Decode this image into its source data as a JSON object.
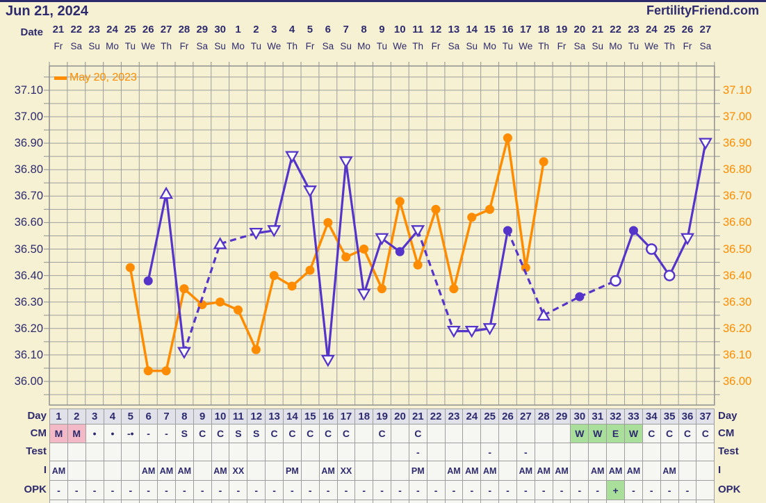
{
  "header": {
    "title": "Jun 21, 2024",
    "brand": "FertilityFriend.com"
  },
  "labels": {
    "date": "Date"
  },
  "calendar": {
    "dates": [
      "21",
      "22",
      "23",
      "24",
      "25",
      "26",
      "27",
      "28",
      "29",
      "30",
      "1",
      "2",
      "3",
      "4",
      "5",
      "6",
      "7",
      "8",
      "9",
      "10",
      "11",
      "12",
      "13",
      "14",
      "15",
      "16",
      "17",
      "18",
      "19",
      "20",
      "21",
      "22",
      "23",
      "24",
      "25",
      "26",
      "27"
    ],
    "weekdays": [
      "Fr",
      "Sa",
      "Su",
      "Mo",
      "Tu",
      "We",
      "Th",
      "Fr",
      "Sa",
      "Su",
      "Mo",
      "Tu",
      "We",
      "Th",
      "Fr",
      "Sa",
      "Su",
      "Mo",
      "Tu",
      "We",
      "Th",
      "Fr",
      "Sa",
      "Su",
      "Mo",
      "Tu",
      "We",
      "Th",
      "Fr",
      "Sa",
      "Su",
      "Mo",
      "Tu",
      "We",
      "Th",
      "Fr",
      "Sa"
    ]
  },
  "chart_data": {
    "type": "line",
    "title": "Basal body temperature chart with previous-cycle overlay",
    "x_axis": {
      "label": "Day",
      "days": 37
    },
    "y_axis": {
      "ticks": [
        "37.10",
        "37.00",
        "36.90",
        "36.80",
        "36.70",
        "36.60",
        "36.50",
        "36.40",
        "36.30",
        "36.20",
        "36.10",
        "36.00"
      ],
      "min": 35.91,
      "max": 37.19,
      "minor_step": 0.05
    },
    "legend": {
      "position": "top-left",
      "entries": [
        "May 20, 2023"
      ]
    },
    "grid": true,
    "gap_style": "dashed",
    "series": [
      {
        "name": "May 20, 2023",
        "color": "#ff8c00",
        "width": 3.5,
        "marker_default": "dot",
        "points": [
          {
            "day": 5,
            "temp": 36.43
          },
          {
            "day": 6,
            "temp": 36.04
          },
          {
            "day": 7,
            "temp": 36.04
          },
          {
            "day": 8,
            "temp": 36.35
          },
          {
            "day": 9,
            "temp": 36.29
          },
          {
            "day": 10,
            "temp": 36.3
          },
          {
            "day": 11,
            "temp": 36.27
          },
          {
            "day": 12,
            "temp": 36.12
          },
          {
            "day": 13,
            "temp": 36.4
          },
          {
            "day": 14,
            "temp": 36.36
          },
          {
            "day": 15,
            "temp": 36.42
          },
          {
            "day": 16,
            "temp": 36.6
          },
          {
            "day": 17,
            "temp": 36.47
          },
          {
            "day": 18,
            "temp": 36.5
          },
          {
            "day": 19,
            "temp": 36.35
          },
          {
            "day": 20,
            "temp": 36.68
          },
          {
            "day": 21,
            "temp": 36.44
          },
          {
            "day": 22,
            "temp": 36.65
          },
          {
            "day": 23,
            "temp": 36.35
          },
          {
            "day": 24,
            "temp": 36.62
          },
          {
            "day": 25,
            "temp": 36.65
          },
          {
            "day": 26,
            "temp": 36.92
          },
          {
            "day": 27,
            "temp": 36.43
          },
          {
            "day": 28,
            "temp": 36.83
          }
        ]
      },
      {
        "name": "Jun 21, 2024",
        "color": "#5534c9",
        "width": 3.2,
        "marker_default": "tri-down",
        "points": [
          {
            "day": 6,
            "temp": 36.38,
            "marker": "dot"
          },
          {
            "day": 7,
            "temp": 36.71,
            "marker": "tri-up"
          },
          {
            "day": 8,
            "temp": 36.11,
            "marker": "tri-down"
          },
          {
            "day": 10,
            "temp": 36.52,
            "marker": "tri-up"
          },
          {
            "day": 12,
            "temp": 36.56,
            "marker": "tri-down"
          },
          {
            "day": 13,
            "temp": 36.57,
            "marker": "tri-down"
          },
          {
            "day": 14,
            "temp": 36.85,
            "marker": "tri-down"
          },
          {
            "day": 15,
            "temp": 36.72,
            "marker": "tri-down"
          },
          {
            "day": 16,
            "temp": 36.08,
            "marker": "tri-down"
          },
          {
            "day": 17,
            "temp": 36.83,
            "marker": "tri-down"
          },
          {
            "day": 18,
            "temp": 36.33,
            "marker": "tri-down"
          },
          {
            "day": 19,
            "temp": 36.54,
            "marker": "tri-down"
          },
          {
            "day": 20,
            "temp": 36.49,
            "marker": "dot"
          },
          {
            "day": 21,
            "temp": 36.57,
            "marker": "tri-down"
          },
          {
            "day": 23,
            "temp": 36.19,
            "marker": "tri-down"
          },
          {
            "day": 24,
            "temp": 36.19,
            "marker": "tri-down"
          },
          {
            "day": 25,
            "temp": 36.2,
            "marker": "tri-down"
          },
          {
            "day": 26,
            "temp": 36.57,
            "marker": "dot"
          },
          {
            "day": 28,
            "temp": 36.25,
            "marker": "tri-up"
          },
          {
            "day": 30,
            "temp": 36.32,
            "marker": "dot"
          },
          {
            "day": 32,
            "temp": 36.38,
            "marker": "circle"
          },
          {
            "day": 33,
            "temp": 36.57,
            "marker": "dot"
          },
          {
            "day": 34,
            "temp": 36.5,
            "marker": "circle"
          },
          {
            "day": 35,
            "temp": 36.4,
            "marker": "circle"
          },
          {
            "day": 36,
            "temp": 36.54,
            "marker": "tri-down"
          },
          {
            "day": 37,
            "temp": 36.9,
            "marker": "tri-down"
          }
        ]
      }
    ]
  },
  "table": {
    "left_labels": [
      "Day",
      "CM",
      "Test",
      "I",
      "OPK"
    ],
    "right_labels": [
      "Day",
      "CM",
      "Test",
      "I",
      "OPK"
    ],
    "days": [
      "1",
      "2",
      "3",
      "4",
      "5",
      "6",
      "7",
      "8",
      "9",
      "10",
      "11",
      "12",
      "13",
      "14",
      "15",
      "16",
      "17",
      "18",
      "19",
      "20",
      "21",
      "22",
      "23",
      "24",
      "25",
      "26",
      "27",
      "28",
      "29",
      "30",
      "31",
      "32",
      "33",
      "34",
      "35",
      "36",
      "37"
    ],
    "cm": [
      "M",
      "M",
      "•",
      "•",
      "-•",
      "-",
      "-",
      "S",
      "C",
      "C",
      "S",
      "S",
      "C",
      "C",
      "C",
      "C",
      "C",
      "",
      "C",
      "",
      "C",
      "",
      "",
      "",
      "",
      "",
      "",
      "",
      "",
      "W",
      "W",
      "E",
      "W",
      "C",
      "C",
      "C",
      "C"
    ],
    "cm_bg": {
      "1": "#f3b9c6",
      "2": "#f3b9c6",
      "30": "#a9df9b",
      "31": "#a9df9b",
      "32": "#a9df9b",
      "33": "#a9df9b"
    },
    "test": [
      "",
      "",
      "",
      "",
      "",
      "",
      "",
      "",
      "",
      "",
      "",
      "",
      "",
      "",
      "",
      "",
      "",
      "",
      "",
      "",
      "-",
      "",
      "",
      "",
      "-",
      "",
      "-",
      "",
      "",
      "",
      "",
      "",
      "",
      "",
      "",
      "",
      ""
    ],
    "intercourse": [
      "AM",
      "",
      "",
      "",
      "",
      "AM",
      "AM",
      "AM",
      "",
      "AM",
      "XX",
      "",
      "",
      "PM",
      "",
      "AM",
      "XX",
      "",
      "",
      "",
      "PM",
      "",
      "AM",
      "AM",
      "AM",
      "",
      "AM",
      "AM",
      "AM",
      "",
      "AM",
      "AM",
      "AM",
      "",
      "AM",
      "",
      ""
    ],
    "opk": [
      "-",
      "-",
      "-",
      "-",
      "-",
      "-",
      "-",
      "-",
      "-",
      "-",
      "-",
      "-",
      "-",
      "-",
      "-",
      "-",
      "-",
      "-",
      "-",
      "-",
      "-",
      "-",
      "-",
      "-",
      "-",
      "-",
      "-",
      "-",
      "-",
      "-",
      "-",
      "+",
      "-",
      "-",
      "-",
      "-",
      ""
    ],
    "opk_bg": {
      "32": "#a9df9b"
    },
    "day_header_bg": "#e1e1ea"
  },
  "colors": {
    "page_bg": "#f6f1d2",
    "navy": "#2d2a6e",
    "orange": "#ff8c00",
    "purple": "#5534c9",
    "grid": "#9e9e9e",
    "cell_bg": "#f6f6f2",
    "pink": "#f3b9c6",
    "green": "#a9df9b"
  }
}
